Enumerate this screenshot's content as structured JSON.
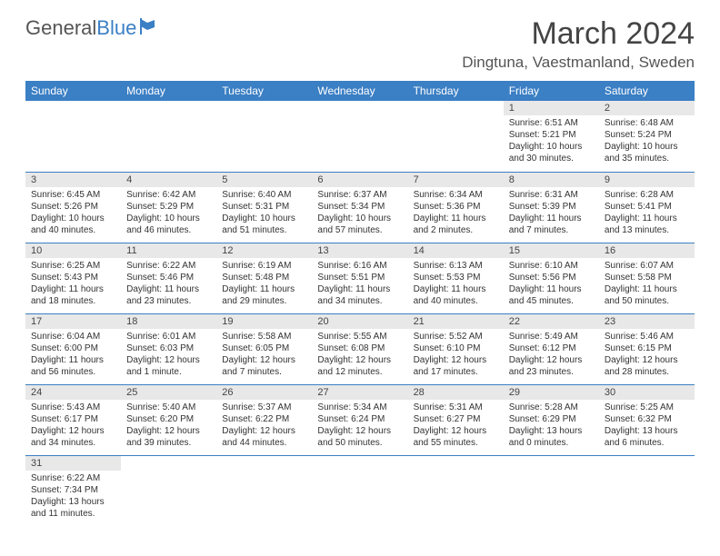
{
  "logo": {
    "text1": "General",
    "text2": "Blue"
  },
  "title": "March 2024",
  "location": "Dingtuna, Vaestmanland, Sweden",
  "headers": [
    "Sunday",
    "Monday",
    "Tuesday",
    "Wednesday",
    "Thursday",
    "Friday",
    "Saturday"
  ],
  "colors": {
    "accent": "#3b7fc4",
    "header_bg": "#e8e8e8"
  },
  "weeks": [
    [
      null,
      null,
      null,
      null,
      null,
      {
        "n": "1",
        "sunrise": "Sunrise: 6:51 AM",
        "sunset": "Sunset: 5:21 PM",
        "daylight": "Daylight: 10 hours and 30 minutes."
      },
      {
        "n": "2",
        "sunrise": "Sunrise: 6:48 AM",
        "sunset": "Sunset: 5:24 PM",
        "daylight": "Daylight: 10 hours and 35 minutes."
      }
    ],
    [
      {
        "n": "3",
        "sunrise": "Sunrise: 6:45 AM",
        "sunset": "Sunset: 5:26 PM",
        "daylight": "Daylight: 10 hours and 40 minutes."
      },
      {
        "n": "4",
        "sunrise": "Sunrise: 6:42 AM",
        "sunset": "Sunset: 5:29 PM",
        "daylight": "Daylight: 10 hours and 46 minutes."
      },
      {
        "n": "5",
        "sunrise": "Sunrise: 6:40 AM",
        "sunset": "Sunset: 5:31 PM",
        "daylight": "Daylight: 10 hours and 51 minutes."
      },
      {
        "n": "6",
        "sunrise": "Sunrise: 6:37 AM",
        "sunset": "Sunset: 5:34 PM",
        "daylight": "Daylight: 10 hours and 57 minutes."
      },
      {
        "n": "7",
        "sunrise": "Sunrise: 6:34 AM",
        "sunset": "Sunset: 5:36 PM",
        "daylight": "Daylight: 11 hours and 2 minutes."
      },
      {
        "n": "8",
        "sunrise": "Sunrise: 6:31 AM",
        "sunset": "Sunset: 5:39 PM",
        "daylight": "Daylight: 11 hours and 7 minutes."
      },
      {
        "n": "9",
        "sunrise": "Sunrise: 6:28 AM",
        "sunset": "Sunset: 5:41 PM",
        "daylight": "Daylight: 11 hours and 13 minutes."
      }
    ],
    [
      {
        "n": "10",
        "sunrise": "Sunrise: 6:25 AM",
        "sunset": "Sunset: 5:43 PM",
        "daylight": "Daylight: 11 hours and 18 minutes."
      },
      {
        "n": "11",
        "sunrise": "Sunrise: 6:22 AM",
        "sunset": "Sunset: 5:46 PM",
        "daylight": "Daylight: 11 hours and 23 minutes."
      },
      {
        "n": "12",
        "sunrise": "Sunrise: 6:19 AM",
        "sunset": "Sunset: 5:48 PM",
        "daylight": "Daylight: 11 hours and 29 minutes."
      },
      {
        "n": "13",
        "sunrise": "Sunrise: 6:16 AM",
        "sunset": "Sunset: 5:51 PM",
        "daylight": "Daylight: 11 hours and 34 minutes."
      },
      {
        "n": "14",
        "sunrise": "Sunrise: 6:13 AM",
        "sunset": "Sunset: 5:53 PM",
        "daylight": "Daylight: 11 hours and 40 minutes."
      },
      {
        "n": "15",
        "sunrise": "Sunrise: 6:10 AM",
        "sunset": "Sunset: 5:56 PM",
        "daylight": "Daylight: 11 hours and 45 minutes."
      },
      {
        "n": "16",
        "sunrise": "Sunrise: 6:07 AM",
        "sunset": "Sunset: 5:58 PM",
        "daylight": "Daylight: 11 hours and 50 minutes."
      }
    ],
    [
      {
        "n": "17",
        "sunrise": "Sunrise: 6:04 AM",
        "sunset": "Sunset: 6:00 PM",
        "daylight": "Daylight: 11 hours and 56 minutes."
      },
      {
        "n": "18",
        "sunrise": "Sunrise: 6:01 AM",
        "sunset": "Sunset: 6:03 PM",
        "daylight": "Daylight: 12 hours and 1 minute."
      },
      {
        "n": "19",
        "sunrise": "Sunrise: 5:58 AM",
        "sunset": "Sunset: 6:05 PM",
        "daylight": "Daylight: 12 hours and 7 minutes."
      },
      {
        "n": "20",
        "sunrise": "Sunrise: 5:55 AM",
        "sunset": "Sunset: 6:08 PM",
        "daylight": "Daylight: 12 hours and 12 minutes."
      },
      {
        "n": "21",
        "sunrise": "Sunrise: 5:52 AM",
        "sunset": "Sunset: 6:10 PM",
        "daylight": "Daylight: 12 hours and 17 minutes."
      },
      {
        "n": "22",
        "sunrise": "Sunrise: 5:49 AM",
        "sunset": "Sunset: 6:12 PM",
        "daylight": "Daylight: 12 hours and 23 minutes."
      },
      {
        "n": "23",
        "sunrise": "Sunrise: 5:46 AM",
        "sunset": "Sunset: 6:15 PM",
        "daylight": "Daylight: 12 hours and 28 minutes."
      }
    ],
    [
      {
        "n": "24",
        "sunrise": "Sunrise: 5:43 AM",
        "sunset": "Sunset: 6:17 PM",
        "daylight": "Daylight: 12 hours and 34 minutes."
      },
      {
        "n": "25",
        "sunrise": "Sunrise: 5:40 AM",
        "sunset": "Sunset: 6:20 PM",
        "daylight": "Daylight: 12 hours and 39 minutes."
      },
      {
        "n": "26",
        "sunrise": "Sunrise: 5:37 AM",
        "sunset": "Sunset: 6:22 PM",
        "daylight": "Daylight: 12 hours and 44 minutes."
      },
      {
        "n": "27",
        "sunrise": "Sunrise: 5:34 AM",
        "sunset": "Sunset: 6:24 PM",
        "daylight": "Daylight: 12 hours and 50 minutes."
      },
      {
        "n": "28",
        "sunrise": "Sunrise: 5:31 AM",
        "sunset": "Sunset: 6:27 PM",
        "daylight": "Daylight: 12 hours and 55 minutes."
      },
      {
        "n": "29",
        "sunrise": "Sunrise: 5:28 AM",
        "sunset": "Sunset: 6:29 PM",
        "daylight": "Daylight: 13 hours and 0 minutes."
      },
      {
        "n": "30",
        "sunrise": "Sunrise: 5:25 AM",
        "sunset": "Sunset: 6:32 PM",
        "daylight": "Daylight: 13 hours and 6 minutes."
      }
    ],
    [
      {
        "n": "31",
        "sunrise": "Sunrise: 6:22 AM",
        "sunset": "Sunset: 7:34 PM",
        "daylight": "Daylight: 13 hours and 11 minutes."
      },
      null,
      null,
      null,
      null,
      null,
      null
    ]
  ]
}
